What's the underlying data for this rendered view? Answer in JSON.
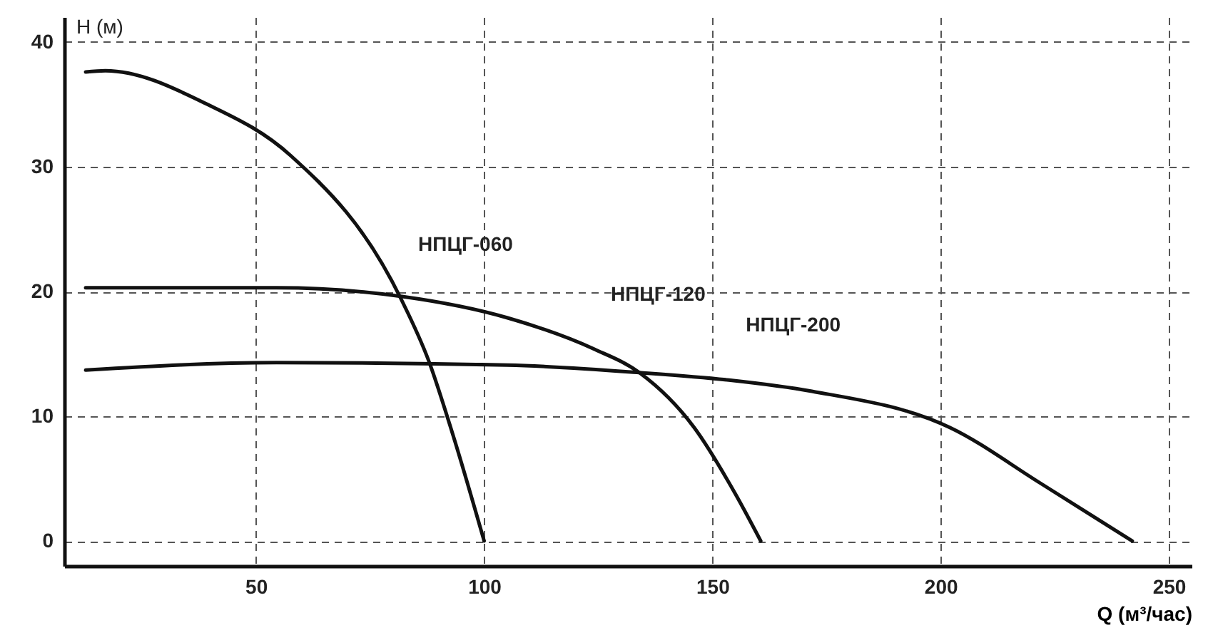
{
  "chart_data": {
    "type": "line",
    "xlabel": "Q (м³/час)",
    "ylabel": "H (м)",
    "xlim": [
      8,
      255
    ],
    "ylim": [
      -2,
      42
    ],
    "xticks": [
      50,
      100,
      150,
      200,
      250
    ],
    "yticks": [
      0,
      10,
      20,
      30,
      40
    ],
    "grid": true,
    "marker": "none",
    "line_style": "solid",
    "series": [
      {
        "name": "НПЦГ-060",
        "color": "#111111",
        "x": [
          12.7,
          17,
          39.4,
          57.6,
          81.8,
          87.9,
          93,
          100
        ],
        "values": [
          37.6,
          37.7,
          35,
          30.9,
          19.4,
          14.4,
          8.7,
          0
        ]
      },
      {
        "name": "НПЦГ-120",
        "color": "#111111",
        "x": [
          12.7,
          54.5,
          82,
          105,
          124,
          134,
          146,
          155,
          160.6
        ],
        "values": [
          20.3,
          20.3,
          19.6,
          17.9,
          15.4,
          13.5,
          9.1,
          3.8,
          0
        ]
      },
      {
        "name": "НПЦГ-200",
        "color": "#111111",
        "x": [
          12.7,
          54.5,
          105,
          134,
          153.6,
          171.8,
          202,
          222,
          242
        ],
        "values": [
          13.7,
          14.3,
          14.1,
          13.5,
          12.9,
          12,
          9.1,
          4.6,
          0
        ]
      }
    ]
  }
}
